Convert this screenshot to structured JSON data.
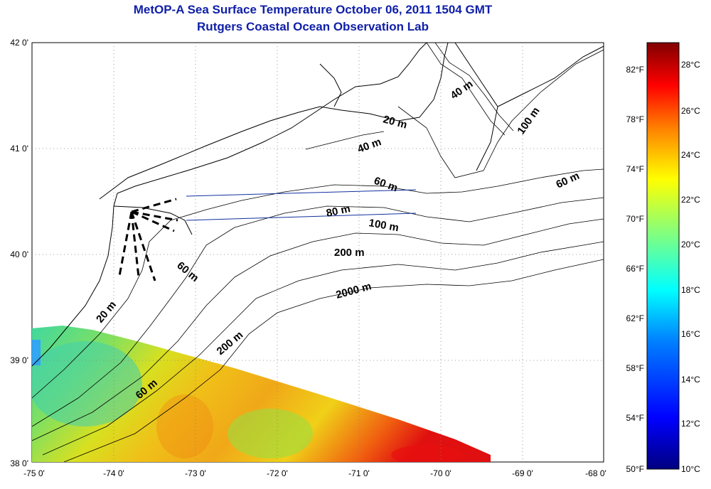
{
  "title_line1": "MetOP-A Sea Surface Temperature October 06, 2011 1504 GMT",
  "title_line2": "Rutgers Coastal Ocean Observation Lab",
  "map": {
    "lat_labels": [
      "42 0'",
      "41 0'",
      "40 0'",
      "39 0'",
      "38 0'"
    ],
    "lon_labels": [
      "-75 0'",
      "-74 0'",
      "-73 0'",
      "-72 0'",
      "-71 0'",
      "-70 0'",
      "-69 0'",
      "-68 0'"
    ],
    "contour_labels": [
      "40 m",
      "100 m",
      "20 m",
      "40 m",
      "60 m",
      "60 m",
      "80 m",
      "100 m",
      "200 m",
      "60 m",
      "20 m",
      "2000 m",
      "200 m",
      "60 m"
    ],
    "land_color": "#ffffff",
    "no_data_color": "#ffffff"
  },
  "colorbar": {
    "f_labels": [
      "82°F",
      "78°F",
      "74°F",
      "70°F",
      "66°F",
      "62°F",
      "58°F",
      "54°F",
      "50°F"
    ],
    "c_labels": [
      "28°C",
      "26°C",
      "24°C",
      "22°C",
      "20°C",
      "18°C",
      "16°C",
      "14°C",
      "12°C",
      "10°C"
    ],
    "colors": [
      "#000080",
      "#0000ff",
      "#0080ff",
      "#00ffff",
      "#80ff80",
      "#ffff00",
      "#ff8000",
      "#ff0000",
      "#800000"
    ]
  }
}
